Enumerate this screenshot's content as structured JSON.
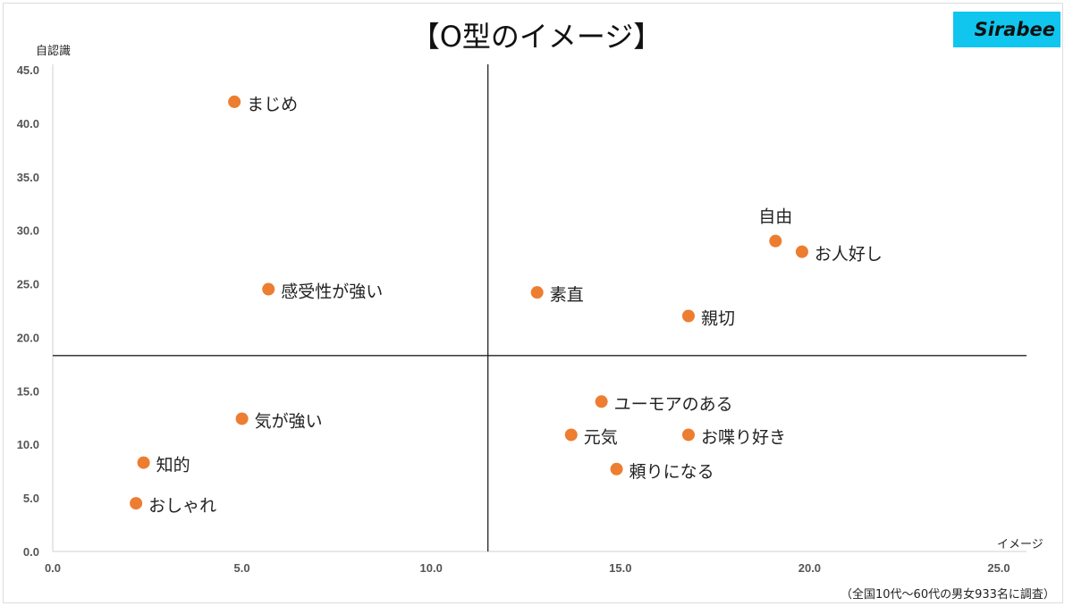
{
  "chart_data": {
    "type": "scatter",
    "title": "【O型のイメージ】",
    "xlabel": "イメージ",
    "ylabel": "自認識",
    "xlim": [
      0,
      25
    ],
    "ylim": [
      0,
      45
    ],
    "xticks": [
      "0.0",
      "5.0",
      "10.0",
      "15.0",
      "20.0",
      "25.0"
    ],
    "yticks": [
      "0.0",
      "5.0",
      "10.0",
      "15.0",
      "20.0",
      "25.0",
      "30.0",
      "35.0",
      "40.0",
      "45.0"
    ],
    "quadrant_lines": {
      "x": 11.5,
      "y": 18.3
    },
    "grid": false,
    "marker_color": "#ED7D31",
    "points": [
      {
        "label": "まじめ",
        "x": 4.8,
        "y": 42.0
      },
      {
        "label": "感受性が強い",
        "x": 5.7,
        "y": 24.5
      },
      {
        "label": "気が強い",
        "x": 5.0,
        "y": 12.4
      },
      {
        "label": "知的",
        "x": 2.4,
        "y": 8.3
      },
      {
        "label": "おしゃれ",
        "x": 2.2,
        "y": 4.5
      },
      {
        "label": "素直",
        "x": 12.8,
        "y": 24.2
      },
      {
        "label": "自由",
        "x": 19.1,
        "y": 29.0,
        "label_pos": "above"
      },
      {
        "label": "お人好し",
        "x": 19.8,
        "y": 28.0
      },
      {
        "label": "親切",
        "x": 16.8,
        "y": 22.0
      },
      {
        "label": "ユーモアのある",
        "x": 14.5,
        "y": 14.0
      },
      {
        "label": "元気",
        "x": 13.7,
        "y": 10.9
      },
      {
        "label": "お喋り好き",
        "x": 16.8,
        "y": 10.9
      },
      {
        "label": "頼りになる",
        "x": 14.9,
        "y": 7.7
      }
    ]
  },
  "logo_text": "Sirabee",
  "note": "（全国10代〜60代の男女933名に調査）"
}
